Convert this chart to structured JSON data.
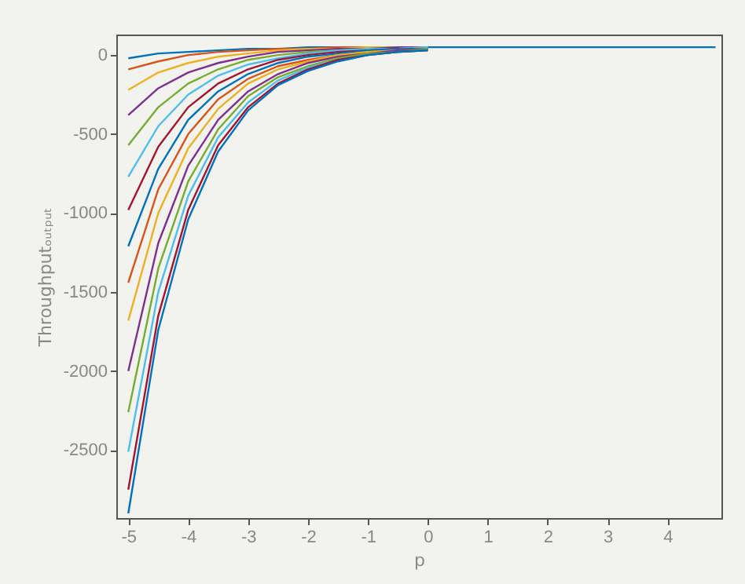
{
  "chart_data": {
    "type": "line",
    "xlabel": "p",
    "ylabel": "Throughputₒᵤₜₚᵤₜ",
    "x": [
      -5,
      -4.5,
      -4,
      -3.5,
      -3,
      -2.5,
      -2,
      -1.5,
      -1,
      -0.5,
      0,
      1,
      2,
      3,
      4,
      4.8
    ],
    "xlim": [
      -5.2,
      4.9
    ],
    "xticks": [
      {
        "value": -5,
        "label": "-5"
      },
      {
        "value": -4,
        "label": "-4"
      },
      {
        "value": -3,
        "label": "-3"
      },
      {
        "value": -2,
        "label": "-2"
      },
      {
        "value": -1,
        "label": "-1"
      },
      0,
      1,
      2,
      3,
      4
    ],
    "ylim": [
      -2930,
      130
    ],
    "yticks": [
      {
        "value": -2500,
        "label": "-2500"
      },
      {
        "value": -2000,
        "label": "-2000"
      },
      {
        "value": -1500,
        "label": "-1500"
      },
      {
        "value": -1000,
        "label": "-1000"
      },
      {
        "value": -500,
        "label": "-500"
      },
      0
    ],
    "grid": false,
    "legend": false,
    "marker": "none",
    "line_style": "solid",
    "series": [
      {
        "color": "#0072bd",
        "values": [
          -20,
          10,
          20,
          30,
          40,
          40,
          50,
          50,
          50,
          50,
          50,
          50,
          50,
          50,
          50,
          50
        ]
      },
      {
        "color": "#d95319",
        "values": [
          -90,
          -40,
          0,
          20,
          30,
          40,
          40,
          50,
          50,
          50,
          50,
          null,
          null,
          null,
          null,
          null
        ]
      },
      {
        "color": "#edb120",
        "values": [
          -220,
          -110,
          -50,
          -10,
          10,
          30,
          40,
          40,
          50,
          50,
          50,
          null,
          null,
          null,
          null,
          null
        ]
      },
      {
        "color": "#7e2f8e",
        "values": [
          -380,
          -210,
          -110,
          -50,
          -10,
          20,
          30,
          40,
          40,
          50,
          50,
          null,
          null,
          null,
          null,
          null
        ]
      },
      {
        "color": "#77ac30",
        "values": [
          -570,
          -330,
          -180,
          -90,
          -30,
          0,
          20,
          30,
          40,
          40,
          50,
          null,
          null,
          null,
          null,
          null
        ]
      },
      {
        "color": "#4dbeee",
        "values": [
          -770,
          -450,
          -250,
          -130,
          -60,
          -20,
          10,
          30,
          40,
          40,
          50,
          null,
          null,
          null,
          null,
          null
        ]
      },
      {
        "color": "#a2142f",
        "values": [
          -980,
          -580,
          -330,
          -180,
          -90,
          -30,
          0,
          20,
          30,
          40,
          40,
          null,
          null,
          null,
          null,
          null
        ]
      },
      {
        "color": "#0072bd",
        "values": [
          -1210,
          -720,
          -410,
          -230,
          -120,
          -50,
          -10,
          10,
          30,
          40,
          40,
          null,
          null,
          null,
          null,
          null
        ]
      },
      {
        "color": "#d95319",
        "values": [
          -1440,
          -850,
          -500,
          -280,
          -150,
          -70,
          -30,
          0,
          20,
          30,
          40,
          null,
          null,
          null,
          null,
          null
        ]
      },
      {
        "color": "#edb120",
        "values": [
          -1680,
          -1000,
          -590,
          -340,
          -180,
          -90,
          -40,
          0,
          20,
          30,
          40,
          null,
          null,
          null,
          null,
          null
        ]
      },
      {
        "color": "#7e2f8e",
        "values": [
          -2000,
          -1190,
          -700,
          -410,
          -230,
          -120,
          -50,
          -10,
          10,
          30,
          40,
          null,
          null,
          null,
          null,
          null
        ]
      },
      {
        "color": "#77ac30",
        "values": [
          -2260,
          -1350,
          -800,
          -470,
          -260,
          -140,
          -70,
          -20,
          10,
          20,
          40,
          null,
          null,
          null,
          null,
          null
        ]
      },
      {
        "color": "#4dbeee",
        "values": [
          -2510,
          -1500,
          -890,
          -520,
          -300,
          -160,
          -80,
          -30,
          0,
          20,
          30,
          null,
          null,
          null,
          null,
          null
        ]
      },
      {
        "color": "#a2142f",
        "values": [
          -2750,
          -1650,
          -980,
          -570,
          -330,
          -180,
          -90,
          -30,
          0,
          20,
          30,
          null,
          null,
          null,
          null,
          null
        ]
      },
      {
        "color": "#0072bd",
        "values": [
          -2900,
          -1740,
          -1040,
          -610,
          -350,
          -190,
          -100,
          -40,
          0,
          20,
          30,
          null,
          null,
          null,
          null,
          null
        ]
      }
    ]
  }
}
